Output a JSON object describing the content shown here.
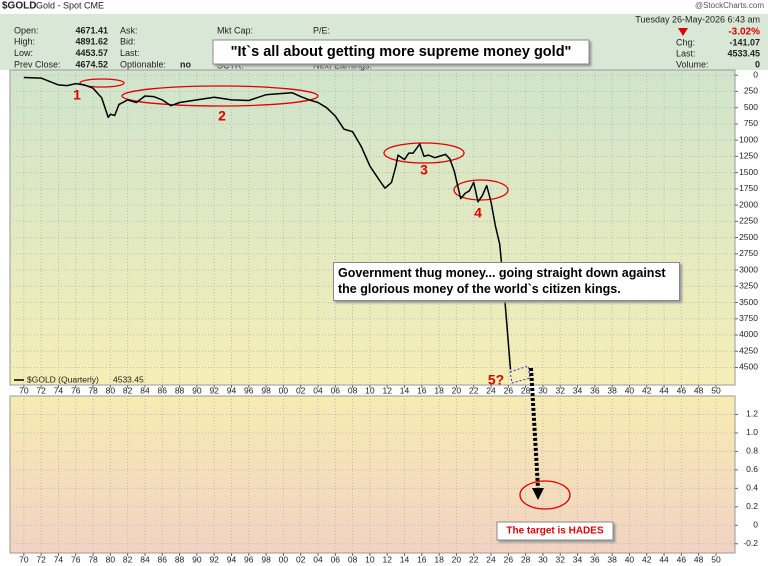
{
  "header": {
    "symbol": "$GOLD",
    "name": "Gold - Spot CME",
    "source": "@StockCharts.com",
    "date": "Tuesday  26-May-2026  6:43 am",
    "quote": [
      {
        "label": "Open:",
        "value": 4671.41
      },
      {
        "label": "High:",
        "value": 4891.62
      },
      {
        "label": "Low:",
        "value": 4453.57
      },
      {
        "label": "Prev Close:",
        "value": 4674.52
      }
    ],
    "fields": [
      "Ask:",
      "Bid:",
      "Last:"
    ],
    "optionable": {
      "label": "Optionable:",
      "value": "no"
    },
    "fields2": [
      "Mkt Cap:",
      "P/E:",
      "SCTR:",
      "Next Earnings:"
    ],
    "change_pct": "-3.02%",
    "change": {
      "label": "Chg:",
      "value": -141.07
    },
    "last": {
      "label": "Last:",
      "value": 4533.45
    },
    "volume": {
      "label": "Volume:",
      "value": 0
    }
  },
  "chart_data": [
    {
      "type": "line",
      "x": [
        1970,
        1972,
        1974,
        1975,
        1976,
        1977,
        1978,
        1979,
        1979.75,
        1980,
        1980.5,
        1981,
        1982,
        1983,
        1984,
        1985,
        1986,
        1987,
        1988,
        1990,
        1992,
        1994,
        1996,
        1998,
        1999,
        2000,
        2001,
        2002,
        2003,
        2004,
        2005,
        2006,
        2007,
        2008,
        2009,
        2010,
        2011,
        2011.75,
        2012.5,
        2013,
        2013.25,
        2014,
        2014.5,
        2015,
        2015.75,
        2016.25,
        2016.75,
        2017.5,
        2018,
        2018.75,
        2019.25,
        2019.75,
        2020.5,
        2021,
        2021.5,
        2022,
        2022.5,
        2023,
        2023.5,
        2024,
        2024.5,
        2025,
        2025.5,
        2026.25
      ],
      "series": [
        {
          "name": "$GOLD (Quarterly)",
          "color": "#000000",
          "values": [
            35,
            45,
            150,
            160,
            130,
            150,
            200,
            350,
            650,
            600,
            620,
            450,
            380,
            420,
            320,
            330,
            380,
            470,
            420,
            380,
            340,
            380,
            390,
            300,
            290,
            280,
            270,
            330,
            380,
            420,
            500,
            630,
            830,
            870,
            1100,
            1400,
            1600,
            1740,
            1650,
            1400,
            1230,
            1300,
            1200,
            1200,
            1060,
            1250,
            1230,
            1270,
            1250,
            1220,
            1290,
            1480,
            1900,
            1820,
            1780,
            1650,
            1950,
            1850,
            1700,
            1950,
            2320,
            2600,
            3300,
            4533.45
          ]
        }
      ],
      "last_value": 4533.45,
      "xlim": [
        1968.4,
        2052.2
      ],
      "xticks": [
        {
          "value": 1970,
          "label": "70"
        },
        {
          "value": 1972,
          "label": "72"
        },
        {
          "value": 1974,
          "label": "74"
        },
        {
          "value": 1976,
          "label": "76"
        },
        {
          "value": 1978,
          "label": "78"
        },
        {
          "value": 1980,
          "label": "80"
        },
        {
          "value": 1982,
          "label": "82"
        },
        {
          "value": 1984,
          "label": "84"
        },
        {
          "value": 1986,
          "label": "86"
        },
        {
          "value": 1988,
          "label": "88"
        },
        {
          "value": 1990,
          "label": "90"
        },
        {
          "value": 1992,
          "label": "92"
        },
        {
          "value": 1994,
          "label": "94"
        },
        {
          "value": 1996,
          "label": "96"
        },
        {
          "value": 1998,
          "label": "98"
        },
        {
          "value": 2000,
          "label": "00"
        },
        {
          "value": 2002,
          "label": "02"
        },
        {
          "value": 2004,
          "label": "04"
        },
        {
          "value": 2006,
          "label": "06"
        },
        {
          "value": 2008,
          "label": "08"
        },
        {
          "value": 2010,
          "label": "10"
        },
        {
          "value": 2012,
          "label": "12"
        },
        {
          "value": 2014,
          "label": "14"
        },
        {
          "value": 2016,
          "label": "16"
        },
        {
          "value": 2018,
          "label": "18"
        },
        {
          "value": 2020,
          "label": "20"
        },
        {
          "value": 2022,
          "label": "22"
        },
        {
          "value": 2024,
          "label": "24"
        },
        {
          "value": 2026,
          "label": "26"
        },
        {
          "value": 2028,
          "label": "28"
        },
        {
          "value": 2030,
          "label": "30"
        },
        {
          "value": 2032,
          "label": "32"
        },
        {
          "value": 2034,
          "label": "34"
        },
        {
          "value": 2036,
          "label": "36"
        },
        {
          "value": 2038,
          "label": "38"
        },
        {
          "value": 2040,
          "label": "40"
        },
        {
          "value": 2042,
          "label": "42"
        },
        {
          "value": 2044,
          "label": "44"
        },
        {
          "value": 2046,
          "label": "46"
        },
        {
          "value": 2048,
          "label": "48"
        },
        {
          "value": 2050,
          "label": "50"
        }
      ],
      "ylim": [
        4770,
        -80
      ],
      "yticks": [
        0,
        250,
        500,
        750,
        1000,
        1250,
        1500,
        1750,
        2000,
        2250,
        2500,
        2750,
        3000,
        3250,
        3500,
        3750,
        4000,
        4250,
        4500
      ],
      "grid": true,
      "annotations": [
        "\"It`s all about getting more supreme money gold\"",
        "1",
        "2",
        "3",
        "4",
        "Government thug money... going straight down against the glorious money of the world`s citizen kings.",
        "5?"
      ]
    },
    {
      "type": "line",
      "xlim": [
        1968.4,
        2052.2
      ],
      "xticks": [
        {
          "value": 1970,
          "label": "70"
        },
        {
          "value": 1972,
          "label": "72"
        },
        {
          "value": 1974,
          "label": "74"
        },
        {
          "value": 1976,
          "label": "76"
        },
        {
          "value": 1978,
          "label": "78"
        },
        {
          "value": 1980,
          "label": "80"
        },
        {
          "value": 1982,
          "label": "82"
        },
        {
          "value": 1984,
          "label": "84"
        },
        {
          "value": 1986,
          "label": "86"
        },
        {
          "value": 1988,
          "label": "88"
        },
        {
          "value": 1990,
          "label": "90"
        },
        {
          "value": 1992,
          "label": "92"
        },
        {
          "value": 1994,
          "label": "94"
        },
        {
          "value": 1996,
          "label": "96"
        },
        {
          "value": 1998,
          "label": "98"
        },
        {
          "value": 2000,
          "label": "00"
        },
        {
          "value": 2002,
          "label": "02"
        },
        {
          "value": 2004,
          "label": "04"
        },
        {
          "value": 2006,
          "label": "06"
        },
        {
          "value": 2008,
          "label": "08"
        },
        {
          "value": 2010,
          "label": "10"
        },
        {
          "value": 2012,
          "label": "12"
        },
        {
          "value": 2014,
          "label": "14"
        },
        {
          "value": 2016,
          "label": "16"
        },
        {
          "value": 2018,
          "label": "18"
        },
        {
          "value": 2020,
          "label": "20"
        },
        {
          "value": 2022,
          "label": "22"
        },
        {
          "value": 2024,
          "label": "24"
        },
        {
          "value": 2026,
          "label": "26"
        },
        {
          "value": 2028,
          "label": "28"
        },
        {
          "value": 2030,
          "label": "30"
        },
        {
          "value": 2032,
          "label": "32"
        },
        {
          "value": 2034,
          "label": "34"
        },
        {
          "value": 2036,
          "label": "36"
        },
        {
          "value": 2038,
          "label": "38"
        },
        {
          "value": 2040,
          "label": "40"
        },
        {
          "value": 2042,
          "label": "42"
        },
        {
          "value": 2044,
          "label": "44"
        },
        {
          "value": 2046,
          "label": "46"
        },
        {
          "value": 2048,
          "label": "48"
        },
        {
          "value": 2050,
          "label": "50"
        }
      ],
      "ylim": [
        -0.3,
        1.4
      ],
      "yticks": [
        1.2,
        {
          "value": 1,
          "label": "1.0"
        },
        0.8,
        0.6,
        0.4,
        0.2,
        0,
        -0.2
      ],
      "grid": true,
      "annotations": [
        "The target is HADES"
      ]
    }
  ]
}
